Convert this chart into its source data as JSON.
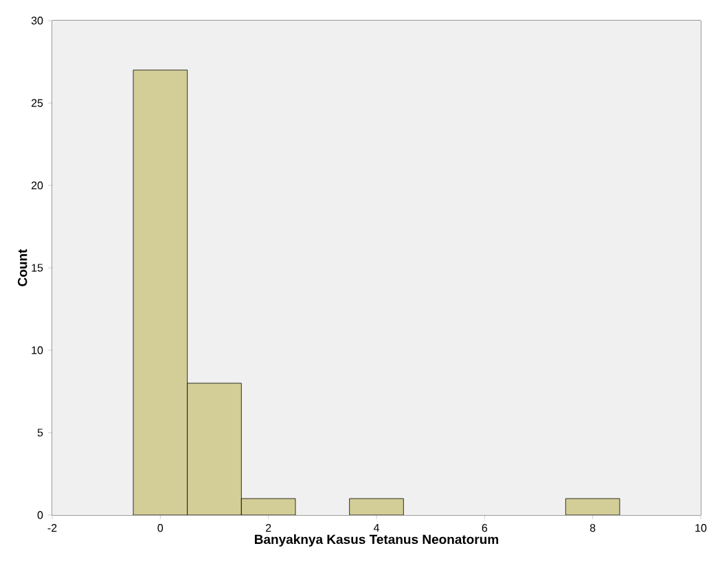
{
  "chart_data": {
    "type": "histogram",
    "xlabel": "Banyaknya Kasus Tetanus Neonatorum",
    "ylabel": "Count",
    "bins": [
      -0.5,
      0.5,
      1.5,
      2.5,
      3.5,
      4.5,
      5.5,
      6.5,
      7.5,
      8.5
    ],
    "values": [
      27,
      8,
      1,
      0,
      1,
      0,
      0,
      0,
      1
    ],
    "color": "#d3ce97",
    "xlim": [
      -2,
      10
    ],
    "ylim": [
      0,
      30
    ],
    "xticks": [
      -2,
      0,
      2,
      4,
      6,
      8,
      10
    ],
    "yticks": [
      0,
      5,
      10,
      15,
      20,
      25,
      30
    ]
  }
}
